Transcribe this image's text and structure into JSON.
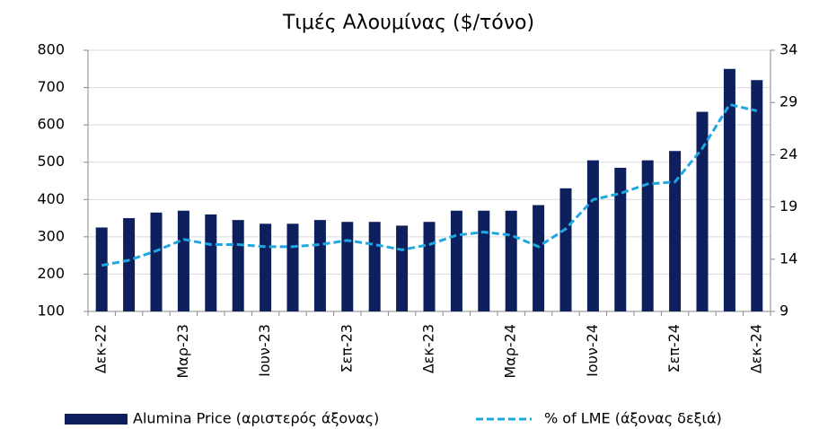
{
  "chart_data": {
    "type": "bar_line",
    "title": "Τιμές Αλουμίνας ($/τόνο)",
    "categories": [
      "Δεκ-22",
      null,
      null,
      "Μαρ-23",
      null,
      null,
      "Ιουν-23",
      null,
      null,
      "Σεπ-23",
      null,
      null,
      "Δεκ-23",
      null,
      null,
      "Μαρ-24",
      null,
      null,
      "Ιουν-24",
      null,
      null,
      "Σεπ-24",
      null,
      null,
      "Δεκ-24"
    ],
    "series": [
      {
        "name": "Alumina Price (αριστερός άξονας)",
        "type": "bar",
        "color": "#0d1f5c",
        "values": [
          325,
          350,
          365,
          370,
          360,
          345,
          335,
          335,
          345,
          340,
          340,
          330,
          340,
          370,
          370,
          370,
          385,
          430,
          505,
          485,
          505,
          530,
          635,
          750,
          720
        ]
      },
      {
        "name": "% of LME (άξονας δεξιά)",
        "type": "line",
        "axis": "y2",
        "color": "#1ea7e0",
        "values": [
          13.4,
          13.9,
          14.8,
          15.9,
          15.4,
          15.4,
          15.2,
          15.2,
          15.4,
          15.8,
          15.4,
          14.9,
          15.4,
          16.3,
          16.6,
          16.3,
          15.2,
          16.9,
          19.7,
          20.3,
          21.2,
          21.4,
          24.6,
          28.8,
          28.2
        ]
      }
    ],
    "ylim": [
      100,
      800
    ],
    "yticks": [
      100,
      200,
      300,
      400,
      500,
      600,
      700,
      800
    ],
    "y2lim": [
      9,
      34
    ],
    "y2ticks": [
      9,
      14,
      19,
      24,
      29,
      34
    ],
    "grid": true,
    "legend": "bottom"
  }
}
